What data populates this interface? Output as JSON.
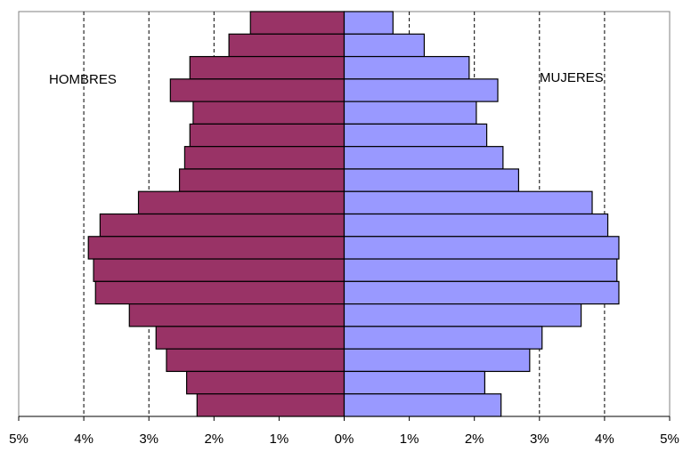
{
  "chart_data": {
    "type": "bar",
    "orientation": "horizontal",
    "series": [
      {
        "name": "HOMBRES",
        "color": "#993366",
        "values": [
          -1.44,
          -1.77,
          -2.37,
          -2.67,
          -2.32,
          -2.37,
          -2.45,
          -2.53,
          -3.16,
          -3.75,
          -3.93,
          -3.85,
          -3.82,
          -3.3,
          -2.89,
          -2.73,
          -2.42,
          -2.26
        ]
      },
      {
        "name": "MUJERES",
        "color": "#9999ff",
        "values": [
          0.75,
          1.23,
          1.92,
          2.36,
          2.03,
          2.19,
          2.44,
          2.68,
          3.81,
          4.05,
          4.22,
          4.19,
          4.22,
          3.64,
          3.04,
          2.85,
          2.16,
          2.41
        ]
      }
    ],
    "xlim": [
      -5,
      5
    ],
    "xticks": [
      {
        "value": -5,
        "label": "5%"
      },
      {
        "value": -4,
        "label": "4%"
      },
      {
        "value": -3,
        "label": "3%"
      },
      {
        "value": -2,
        "label": "2%"
      },
      {
        "value": -1,
        "label": "1%"
      },
      {
        "value": 0,
        "label": "0%"
      },
      {
        "value": 1,
        "label": "1%"
      },
      {
        "value": 2,
        "label": "2%"
      },
      {
        "value": 3,
        "label": "3%"
      },
      {
        "value": 4,
        "label": "4%"
      },
      {
        "value": 5,
        "label": "5%"
      }
    ],
    "grid": true
  }
}
